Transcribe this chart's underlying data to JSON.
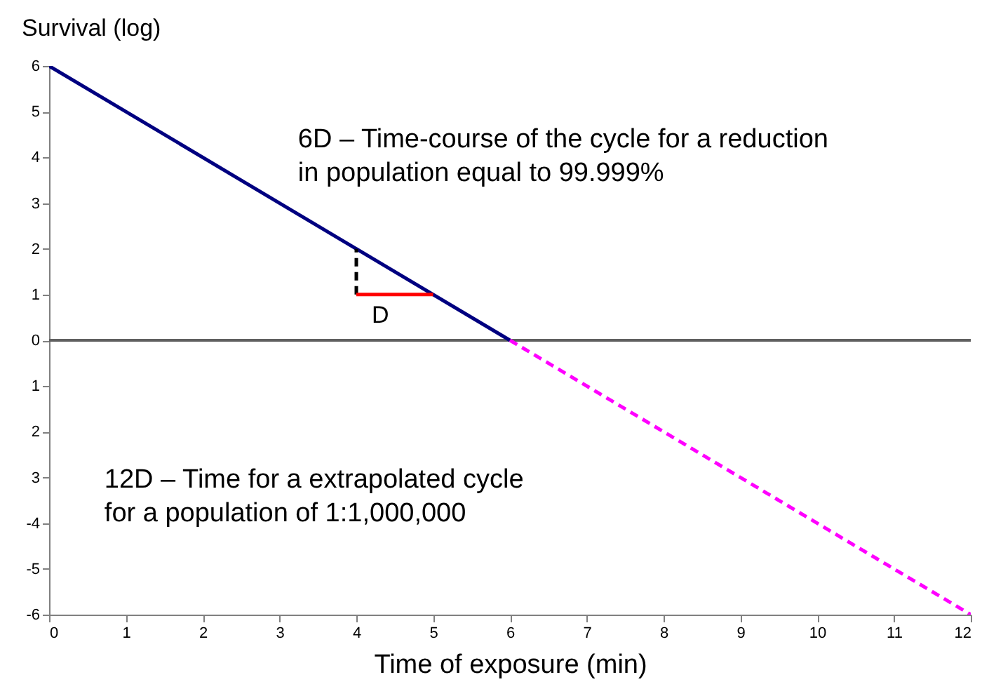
{
  "chart_data": {
    "type": "line",
    "xlabel": "Time of exposure (min)",
    "ylabel": "Survival (log)",
    "xlim": [
      0,
      12
    ],
    "xticks": [
      0,
      1,
      2,
      3,
      4,
      5,
      6,
      7,
      8,
      9,
      10,
      11,
      12
    ],
    "ylim": [
      -6,
      6
    ],
    "yticks": [
      6,
      5,
      4,
      3,
      2,
      1,
      0,
      {
        "value": -1,
        "label": "1"
      },
      {
        "value": -2,
        "label": "2"
      },
      {
        "value": -3,
        "label": "3"
      },
      -4,
      -5,
      -6
    ],
    "grid": false,
    "marker": "none",
    "series": [
      {
        "color": "#000080",
        "x": [
          0,
          6
        ],
        "values": [
          6,
          0
        ],
        "line_style": "solid"
      },
      {
        "color": "#ff00ff",
        "x": [
          6,
          12
        ],
        "values": [
          0,
          -6
        ],
        "line_style": "dashed"
      },
      {
        "color": "#000000",
        "x": [
          4,
          4
        ],
        "values": [
          1,
          2
        ],
        "line_style": "dashed"
      },
      {
        "color": "#ff0000",
        "x": [
          4,
          5
        ],
        "values": [
          1,
          1
        ],
        "line_style": "solid"
      }
    ],
    "ref_lines": [
      {
        "axis": "y",
        "value": 0,
        "color": "#606060"
      }
    ],
    "annotations": [
      "6D – Time-course of the cycle for a reduction\nin population equal to 99.999%",
      "12D – Time for a extrapolated cycle\nfor a population of 1:1,000,000",
      "D"
    ]
  }
}
